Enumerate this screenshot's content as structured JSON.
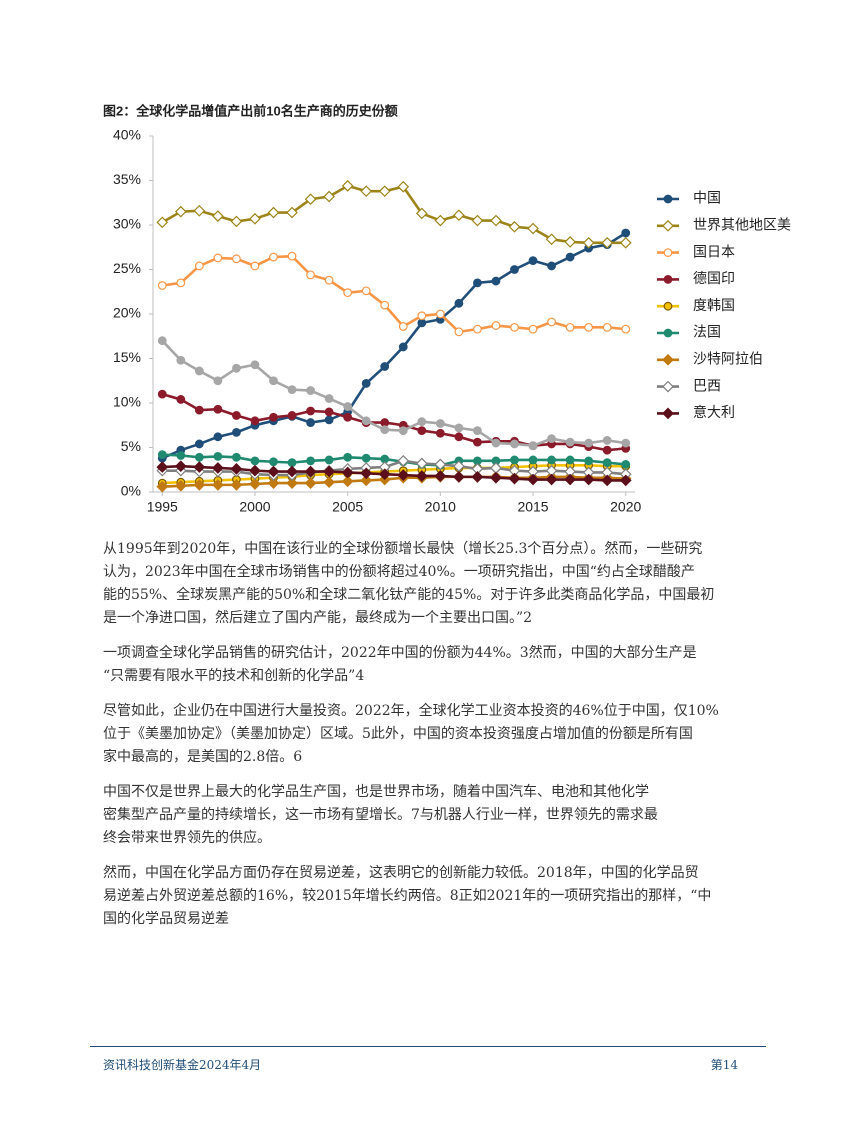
{
  "chart_data": {
    "type": "line",
    "title": "图2：全球化学品增值产出前10名生产商的历史份额",
    "x": [
      1995,
      1996,
      1997,
      1998,
      1999,
      2000,
      2001,
      2002,
      2003,
      2004,
      2005,
      2006,
      2007,
      2008,
      2009,
      2010,
      2011,
      2012,
      2013,
      2014,
      2015,
      2016,
      2017,
      2018,
      2019,
      2020
    ],
    "xlim": [
      1994.5,
      2020.5
    ],
    "xticks": [
      1995,
      2000,
      2005,
      2010,
      2015,
      2020
    ],
    "ylim": [
      0,
      40
    ],
    "yticks": [
      {
        "value": 0,
        "label": "0%"
      },
      {
        "value": 5,
        "label": "5%"
      },
      {
        "value": 10,
        "label": "10%"
      },
      {
        "value": 15,
        "label": "15%"
      },
      {
        "value": 20,
        "label": "20%"
      },
      {
        "value": 25,
        "label": "25%"
      },
      {
        "value": 30,
        "label": "30%"
      },
      {
        "value": 35,
        "label": "35%"
      },
      {
        "value": 40,
        "label": "40%"
      }
    ],
    "grid": false,
    "legend": "right",
    "series": [
      {
        "name": "中国",
        "color": "#1f4e79",
        "marker": "circle",
        "values": [
          3.8,
          4.7,
          5.4,
          6.2,
          6.7,
          7.5,
          8.0,
          8.5,
          7.8,
          8.1,
          9.0,
          12.2,
          14.1,
          16.3,
          19.0,
          19.4,
          21.2,
          23.5,
          23.7,
          25.0,
          26.0,
          25.4,
          26.4,
          27.4,
          27.8,
          29.1
        ]
      },
      {
        "name": "世界其他地区美",
        "color": "#9c8418",
        "marker": "diamond-open",
        "values": [
          30.3,
          31.5,
          31.6,
          31.0,
          30.4,
          30.7,
          31.4,
          31.4,
          32.9,
          33.2,
          34.4,
          33.8,
          33.8,
          34.3,
          31.3,
          30.5,
          31.1,
          30.5,
          30.5,
          29.8,
          29.6,
          28.4,
          28.1,
          28.0,
          28.0,
          28.0
        ]
      },
      {
        "name": "国日本",
        "color": "#f79646",
        "marker": "circle-open",
        "values": [
          23.2,
          23.5,
          25.4,
          26.3,
          26.2,
          25.4,
          26.4,
          26.5,
          24.4,
          23.8,
          22.4,
          22.6,
          21.0,
          18.6,
          19.8,
          20.0,
          18.0,
          18.3,
          18.7,
          18.5,
          18.3,
          19.1,
          18.5,
          18.5,
          18.5,
          18.3
        ]
      },
      {
        "name": "德国印",
        "color": "#8b1a2b",
        "marker": "circle",
        "values": [
          11.0,
          10.4,
          9.2,
          9.3,
          8.6,
          8.0,
          8.4,
          8.6,
          9.1,
          9.0,
          8.4,
          7.8,
          7.8,
          7.5,
          6.9,
          6.6,
          6.2,
          5.6,
          5.7,
          5.7,
          5.2,
          5.4,
          5.4,
          5.1,
          4.7,
          4.9
        ]
      },
      {
        "name": "度韩国",
        "color": "#f2c200",
        "marker": "circle",
        "values": [
          1.0,
          1.1,
          1.2,
          1.3,
          1.4,
          1.5,
          1.6,
          1.7,
          1.9,
          2.0,
          2.1,
          2.2,
          2.3,
          2.4,
          2.5,
          2.6,
          2.7,
          2.7,
          2.7,
          2.8,
          2.9,
          3.0,
          3.0,
          3.0,
          2.9,
          2.9
        ]
      },
      {
        "name": "法国",
        "color": "#1f8a70",
        "marker": "circle",
        "values": [
          4.2,
          4.1,
          3.9,
          4.0,
          3.9,
          3.5,
          3.4,
          3.3,
          3.5,
          3.6,
          3.9,
          3.8,
          3.7,
          3.4,
          3.1,
          3.0,
          3.5,
          3.5,
          3.5,
          3.6,
          3.6,
          3.6,
          3.6,
          3.5,
          3.3,
          3.1
        ]
      },
      {
        "name": "沙特阿拉伯",
        "color": "#c07a10",
        "marker": "diamond",
        "values": [
          0.6,
          0.7,
          0.8,
          0.8,
          0.8,
          0.9,
          1.0,
          1.0,
          1.0,
          1.1,
          1.2,
          1.3,
          1.4,
          1.6,
          1.6,
          1.7,
          1.7,
          1.7,
          1.7,
          1.6,
          1.6,
          1.7,
          1.7,
          1.6,
          1.6,
          1.5
        ]
      },
      {
        "name": "巴西",
        "color": "#7f7f7f",
        "marker": "diamond-open",
        "values": [
          2.4,
          2.4,
          2.3,
          2.3,
          2.3,
          2.0,
          1.9,
          1.9,
          2.2,
          2.4,
          2.6,
          2.7,
          2.8,
          3.5,
          3.2,
          3.1,
          2.9,
          2.6,
          2.7,
          2.4,
          2.3,
          2.4,
          2.3,
          2.2,
          2.2,
          2.0
        ]
      },
      {
        "name": "意大利",
        "color": "#5a0f1a",
        "marker": "diamond",
        "values": [
          2.8,
          2.9,
          2.8,
          2.7,
          2.6,
          2.4,
          2.3,
          2.3,
          2.3,
          2.3,
          2.2,
          2.1,
          2.0,
          1.9,
          1.8,
          1.8,
          1.7,
          1.7,
          1.6,
          1.5,
          1.4,
          1.4,
          1.4,
          1.4,
          1.3,
          1.3
        ]
      },
      {
        "color": "#a6a6a6",
        "marker": "circle",
        "values": [
          17.0,
          14.8,
          13.6,
          12.5,
          13.9,
          14.3,
          12.5,
          11.5,
          11.4,
          10.5,
          9.6,
          8.0,
          7.0,
          6.9,
          7.9,
          7.7,
          7.2,
          6.9,
          5.5,
          5.4,
          5.2,
          6.0,
          5.6,
          5.5,
          5.8,
          5.5
        ]
      }
    ]
  },
  "paragraphs": [
    [
      "从1995年到2020年，中国在该行业的全球份额增长最快（增长25.3个百分点）。然而，一些研究",
      "认为，2023年中国在全球市场销售中的份额将超过40%。一项研究指出，中国“约占全球醋酸产",
      "能的55%、全球炭黑产能的50%和全球二氧化钛产能的45%。对于许多此类商品化学品，中国最初",
      "是一个净进口国，然后建立了国内产能，最终成为一个主要出口国。”2"
    ],
    [
      "一项调查全球化学品销售的研究估计，2022年中国的份额为44%。3然而，中国的大部分生产是",
      "“只需要有限水平的技术和创新的化学品”4"
    ],
    [
      "尽管如此，企业仍在中国进行大量投资。2022年，全球化学工业资本投资的46%位于中国，仅10%",
      "位于《美墨加协定》（美墨加协定）区域。5此外，中国的资本投资强度占增加值的份额是所有国",
      "家中最高的，是美国的2.8倍。6"
    ],
    [
      "中国不仅是世界上最大的化学品生产国，也是世界市场，随着中国汽车、电池和其他化学",
      "密集型产品产量的持续增长，这一市场有望增长。7与机器人行业一样，世界领先的需求最",
      "终会带来世界领先的供应。"
    ],
    [
      "然而，中国在化学品方面仍存在贸易逆差，这表明它的创新能力较低。2018年，中国的化学品贸",
      "易逆差占外贸逆差总额的16%，较2015年增长约两倍。8正如2021年的一项研究指出的那样，“中",
      "国的化学品贸易逆差"
    ]
  ],
  "footer": {
    "left": "资讯科技创新基金2024年4月",
    "right": "第14"
  }
}
